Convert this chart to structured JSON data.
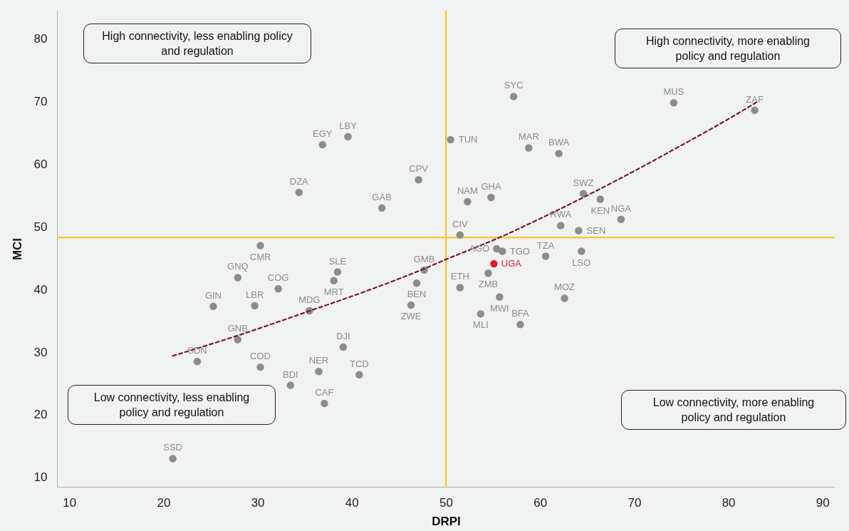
{
  "chart_data": {
    "type": "scatter",
    "xlabel": "DRPI",
    "ylabel": "MCI",
    "xlim": [
      8.7,
      91.3
    ],
    "ylim": [
      8.5,
      84.5
    ],
    "xticks": [
      10,
      20,
      30,
      40,
      50,
      60,
      70,
      80,
      90
    ],
    "yticks": [
      10,
      20,
      30,
      40,
      50,
      60,
      70,
      80
    ],
    "grid": false,
    "series": [
      {
        "marker": "circle",
        "x": [
          57.2,
          74.2,
          82.8,
          39.6,
          36.9,
          50.5,
          58.8,
          62.0,
          47.1,
          34.4,
          52.3,
          54.8,
          64.6,
          66.4,
          43.2,
          68.6,
          62.2,
          64.1,
          51.5,
          30.3,
          55.4,
          56.0,
          64.4,
          60.6,
          55.1,
          54.5,
          47.7,
          38.5,
          27.9,
          38.1,
          46.9,
          32.2,
          51.5,
          55.7,
          62.6,
          25.3,
          29.7,
          46.3,
          35.5,
          53.7,
          57.9,
          27.9,
          39.1,
          23.6,
          30.3,
          36.5,
          40.8,
          33.5,
          37.1,
          21.0
        ],
        "values": [
          70.8,
          69.8,
          68.6,
          64.4,
          63.1,
          63.9,
          62.6,
          61.7,
          57.5,
          55.5,
          54.0,
          54.7,
          55.3,
          54.4,
          53.0,
          51.2,
          50.2,
          49.4,
          48.7,
          47.0,
          46.5,
          46.1,
          46.1,
          45.3,
          44.1,
          42.6,
          43.1,
          42.8,
          41.9,
          41.4,
          41.0,
          40.1,
          40.3,
          38.8,
          38.6,
          37.3,
          37.4,
          37.5,
          36.6,
          36.1,
          34.4,
          32.0,
          30.8,
          28.5,
          27.6,
          26.9,
          26.4,
          24.7,
          21.8,
          13.0
        ],
        "colors": [
          "#8c8c8c",
          "#8c8c8c",
          "#8c8c8c",
          "#8c8c8c",
          "#8c8c8c",
          "#8c8c8c",
          "#8c8c8c",
          "#8c8c8c",
          "#8c8c8c",
          "#8c8c8c",
          "#8c8c8c",
          "#8c8c8c",
          "#8c8c8c",
          "#8c8c8c",
          "#8c8c8c",
          "#8c8c8c",
          "#8c8c8c",
          "#8c8c8c",
          "#8c8c8c",
          "#8c8c8c",
          "#8c8c8c",
          "#8c8c8c",
          "#8c8c8c",
          "#8c8c8c",
          "#e3192b",
          "#8c8c8c",
          "#8c8c8c",
          "#8c8c8c",
          "#8c8c8c",
          "#8c8c8c",
          "#8c8c8c",
          "#8c8c8c",
          "#8c8c8c",
          "#8c8c8c",
          "#8c8c8c",
          "#8c8c8c",
          "#8c8c8c",
          "#8c8c8c",
          "#8c8c8c",
          "#8c8c8c",
          "#8c8c8c",
          "#8c8c8c",
          "#8c8c8c",
          "#8c8c8c",
          "#8c8c8c",
          "#8c8c8c",
          "#8c8c8c",
          "#8c8c8c",
          "#8c8c8c",
          "#8c8c8c"
        ]
      },
      {
        "type": "line",
        "marker": "none",
        "color": "#7a1a2c",
        "line_style": "dashed",
        "x": [
          21,
          28,
          35,
          42,
          48,
          50,
          52,
          56,
          60,
          65,
          70,
          75,
          80,
          83
        ],
        "values": [
          29.4,
          32.7,
          36.3,
          40.0,
          43.5,
          44.8,
          46.0,
          48.5,
          51.3,
          55.0,
          58.9,
          63.0,
          67.2,
          69.9
        ]
      }
    ],
    "ref_lines": [
      {
        "axis": "x",
        "value": 50,
        "color": "#f5c518"
      },
      {
        "axis": "y",
        "value": 48.3,
        "color": "#f5c518"
      }
    ],
    "annotations": [
      "High connectivity, less enabling policy and regulation",
      "High connectivity, more enabling policy and regulation",
      "Low connectivity, less enabling policy and regulation",
      "Low connectivity, more enabling policy and regulation",
      {
        "text": "SYC",
        "x": 57.2,
        "y": 70.8
      },
      {
        "text": "MUS",
        "x": 74.2,
        "y": 69.8
      },
      {
        "text": "ZAF",
        "x": 82.8,
        "y": 68.6
      },
      {
        "text": "LBY",
        "x": 39.6,
        "y": 64.4
      },
      {
        "text": "EGY",
        "x": 36.9,
        "y": 63.1
      },
      {
        "text": "TUN",
        "x": 50.5,
        "y": 63.9
      },
      {
        "text": "MAR",
        "x": 58.8,
        "y": 62.6
      },
      {
        "text": "BWA",
        "x": 62.0,
        "y": 61.7
      },
      {
        "text": "CPV",
        "x": 47.1,
        "y": 57.5
      },
      {
        "text": "DZA",
        "x": 34.4,
        "y": 55.5
      },
      {
        "text": "NAM",
        "x": 52.3,
        "y": 54.0
      },
      {
        "text": "GHA",
        "x": 54.8,
        "y": 54.7
      },
      {
        "text": "SWZ",
        "x": 64.6,
        "y": 55.3
      },
      {
        "text": "KEN",
        "x": 66.4,
        "y": 54.4
      },
      {
        "text": "GAB",
        "x": 43.2,
        "y": 53.0
      },
      {
        "text": "NGA",
        "x": 68.6,
        "y": 51.2
      },
      {
        "text": "RWA",
        "x": 62.2,
        "y": 50.2
      },
      {
        "text": "SEN",
        "x": 64.1,
        "y": 49.4
      },
      {
        "text": "CIV",
        "x": 51.5,
        "y": 48.7
      },
      {
        "text": "CMR",
        "x": 30.3,
        "y": 47.0
      },
      {
        "text": "AGO",
        "x": 55.4,
        "y": 46.5
      },
      {
        "text": "TGO",
        "x": 56.0,
        "y": 46.1
      },
      {
        "text": "LSO",
        "x": 64.4,
        "y": 46.1
      },
      {
        "text": "TZA",
        "x": 60.6,
        "y": 45.3
      },
      {
        "text": "UGA",
        "x": 55.1,
        "y": 44.1
      },
      {
        "text": "ZMB",
        "x": 54.5,
        "y": 42.6
      },
      {
        "text": "GMB",
        "x": 47.7,
        "y": 43.1
      },
      {
        "text": "SLE",
        "x": 38.5,
        "y": 42.8
      },
      {
        "text": "GNQ",
        "x": 27.9,
        "y": 41.9
      },
      {
        "text": "MRT",
        "x": 38.1,
        "y": 41.4
      },
      {
        "text": "BEN",
        "x": 46.9,
        "y": 41.0
      },
      {
        "text": "COG",
        "x": 32.2,
        "y": 40.1
      },
      {
        "text": "ETH",
        "x": 51.5,
        "y": 40.3
      },
      {
        "text": "MWI",
        "x": 55.7,
        "y": 38.8
      },
      {
        "text": "MOZ",
        "x": 62.6,
        "y": 38.6
      },
      {
        "text": "GIN",
        "x": 25.3,
        "y": 37.3
      },
      {
        "text": "LBR",
        "x": 29.7,
        "y": 37.4
      },
      {
        "text": "ZWE",
        "x": 46.3,
        "y": 37.5
      },
      {
        "text": "MDG",
        "x": 35.5,
        "y": 36.6
      },
      {
        "text": "MLI",
        "x": 53.7,
        "y": 36.1
      },
      {
        "text": "BFA",
        "x": 57.9,
        "y": 34.4
      },
      {
        "text": "GNB",
        "x": 27.9,
        "y": 32.0
      },
      {
        "text": "DJI",
        "x": 39.1,
        "y": 30.8
      },
      {
        "text": "SDN",
        "x": 23.6,
        "y": 28.5
      },
      {
        "text": "COD",
        "x": 30.3,
        "y": 27.6
      },
      {
        "text": "NER",
        "x": 36.5,
        "y": 26.9
      },
      {
        "text": "TCD",
        "x": 40.8,
        "y": 26.4
      },
      {
        "text": "BDI",
        "x": 33.5,
        "y": 24.7
      },
      {
        "text": "CAF",
        "x": 37.1,
        "y": 21.8
      },
      {
        "text": "SSD",
        "x": 21.0,
        "y": 13.0
      }
    ]
  }
}
